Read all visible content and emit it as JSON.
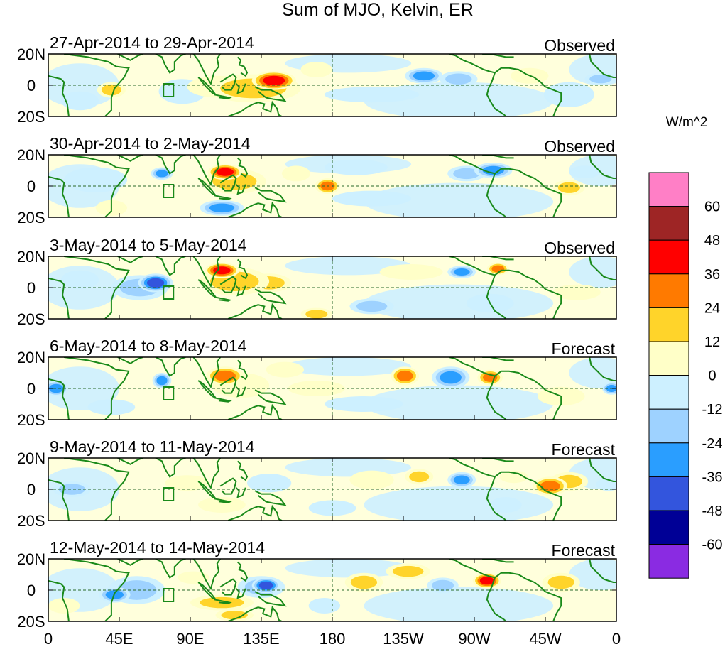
{
  "chart_data": {
    "type": "heatmap",
    "title": "Sum of MJO, Kelvin, ER",
    "units_label": "W/m^2",
    "x_ticks": [
      "0",
      "45E",
      "90E",
      "135E",
      "180",
      "135W",
      "90W",
      "45W",
      "0"
    ],
    "x_tick_values": [
      0,
      45,
      90,
      135,
      180,
      225,
      270,
      315,
      360
    ],
    "y_ticks": [
      "20N",
      "0",
      "20S"
    ],
    "y_tick_values": [
      20,
      0,
      -20
    ],
    "xlim": [
      0,
      360
    ],
    "ylim": [
      -20,
      20
    ],
    "colorbar": {
      "labels": [
        "60",
        "48",
        "36",
        "24",
        "12",
        "0",
        "-12",
        "-24",
        "-36",
        "-48",
        "-60"
      ],
      "levels": [
        60,
        48,
        36,
        24,
        12,
        0,
        -12,
        -24,
        -36,
        -48,
        -60
      ],
      "colors": [
        "#ff7fc6",
        "#9e2525",
        "#ff0000",
        "#ff7a00",
        "#ffd42a",
        "#ffffc8",
        "#cdf0ff",
        "#9ed2ff",
        "#2a9eff",
        "#3355dd",
        "#000096",
        "#8a2be2"
      ]
    },
    "panels": [
      {
        "period": "27-Apr-2014 to 29-Apr-2014",
        "status": "Observed",
        "anomalies": [
          {
            "lon": 143,
            "lat": 3,
            "rx": 14,
            "ry": 6,
            "value": 50
          },
          {
            "lon": 130,
            "lat": -2,
            "rx": 30,
            "ry": 9,
            "value": 18
          },
          {
            "lon": 108,
            "lat": -1,
            "rx": 20,
            "ry": 7,
            "value": 15
          },
          {
            "lon": 170,
            "lat": 10,
            "rx": 10,
            "ry": 5,
            "value": 14
          },
          {
            "lon": 40,
            "lat": -3,
            "rx": 9,
            "ry": 5,
            "value": 25
          },
          {
            "lon": 238,
            "lat": 6,
            "rx": 12,
            "ry": 5,
            "value": -30
          },
          {
            "lon": 260,
            "lat": 4,
            "rx": 12,
            "ry": 5,
            "value": -25
          },
          {
            "lon": 350,
            "lat": 4,
            "rx": 10,
            "ry": 4,
            "value": -28
          },
          {
            "lon": 205,
            "lat": -6,
            "rx": 30,
            "ry": 5,
            "value": -10
          },
          {
            "lon": 85,
            "lat": -4,
            "rx": 15,
            "ry": 8,
            "value": -8
          },
          {
            "lon": 305,
            "lat": 6,
            "rx": 12,
            "ry": 5,
            "value": 14
          },
          {
            "lon": 330,
            "lat": -6,
            "rx": 16,
            "ry": 8,
            "value": -8
          },
          {
            "lon": 20,
            "lat": -10,
            "rx": 12,
            "ry": 6,
            "value": -10
          }
        ]
      },
      {
        "period": "30-Apr-2014 to 2-May-2014",
        "status": "Observed",
        "anomalies": [
          {
            "lon": 112,
            "lat": 9,
            "rx": 11,
            "ry": 5,
            "value": 42
          },
          {
            "lon": 118,
            "lat": 3,
            "rx": 20,
            "ry": 8,
            "value": 18
          },
          {
            "lon": 177,
            "lat": 0,
            "rx": 8,
            "ry": 5,
            "value": 30
          },
          {
            "lon": 157,
            "lat": 8,
            "rx": 9,
            "ry": 5,
            "value": 15
          },
          {
            "lon": 330,
            "lat": -1,
            "rx": 10,
            "ry": 5,
            "value": 28
          },
          {
            "lon": 282,
            "lat": 10,
            "rx": 12,
            "ry": 5,
            "value": -35
          },
          {
            "lon": 265,
            "lat": 8,
            "rx": 12,
            "ry": 5,
            "value": -20
          },
          {
            "lon": 110,
            "lat": -14,
            "rx": 14,
            "ry": 5,
            "value": -30
          },
          {
            "lon": 72,
            "lat": 8,
            "rx": 7,
            "ry": 4,
            "value": -30
          },
          {
            "lon": 30,
            "lat": 4,
            "rx": 20,
            "ry": 8,
            "value": -8
          },
          {
            "lon": 205,
            "lat": -8,
            "rx": 25,
            "ry": 5,
            "value": -12
          },
          {
            "lon": 195,
            "lat": 12,
            "rx": 20,
            "ry": 5,
            "value": -10
          },
          {
            "lon": 340,
            "lat": 9,
            "rx": 10,
            "ry": 4,
            "value": -14
          },
          {
            "lon": 40,
            "lat": -14,
            "rx": 10,
            "ry": 5,
            "value": 12
          }
        ]
      },
      {
        "period": "3-May-2014 to 5-May-2014",
        "status": "Observed",
        "anomalies": [
          {
            "lon": 68,
            "lat": 3,
            "rx": 11,
            "ry": 6,
            "value": -52
          },
          {
            "lon": 58,
            "lat": 0,
            "rx": 18,
            "ry": 8,
            "value": -22
          },
          {
            "lon": 110,
            "lat": 11,
            "rx": 11,
            "ry": 5,
            "value": 42
          },
          {
            "lon": 118,
            "lat": 4,
            "rx": 22,
            "ry": 9,
            "value": 26
          },
          {
            "lon": 140,
            "lat": 3,
            "rx": 14,
            "ry": 6,
            "value": 22
          },
          {
            "lon": 170,
            "lat": -17,
            "rx": 10,
            "ry": 4,
            "value": 28
          },
          {
            "lon": 205,
            "lat": -12,
            "rx": 14,
            "ry": 5,
            "value": -28
          },
          {
            "lon": 262,
            "lat": 10,
            "rx": 9,
            "ry": 4,
            "value": -38
          },
          {
            "lon": 285,
            "lat": 12,
            "rx": 7,
            "ry": 4,
            "value": 30
          },
          {
            "lon": 230,
            "lat": 10,
            "rx": 20,
            "ry": 5,
            "value": 15
          },
          {
            "lon": 280,
            "lat": -10,
            "rx": 15,
            "ry": 6,
            "value": -10
          },
          {
            "lon": 20,
            "lat": 5,
            "rx": 12,
            "ry": 6,
            "value": -12
          },
          {
            "lon": 335,
            "lat": -3,
            "rx": 15,
            "ry": 5,
            "value": 10
          }
        ]
      },
      {
        "period": "6-May-2014 to 8-May-2014",
        "status": "Forecast",
        "anomalies": [
          {
            "lon": 112,
            "lat": 8,
            "rx": 12,
            "ry": 6,
            "value": 30
          },
          {
            "lon": 122,
            "lat": 2,
            "rx": 18,
            "ry": 8,
            "value": 16
          },
          {
            "lon": 226,
            "lat": 8,
            "rx": 9,
            "ry": 6,
            "value": 30
          },
          {
            "lon": 255,
            "lat": 7,
            "rx": 12,
            "ry": 7,
            "value": -32
          },
          {
            "lon": 280,
            "lat": 7,
            "rx": 8,
            "ry": 5,
            "value": 38
          },
          {
            "lon": 5,
            "lat": 0,
            "rx": 8,
            "ry": 5,
            "value": -30
          },
          {
            "lon": 357,
            "lat": 0,
            "rx": 6,
            "ry": 4,
            "value": -30
          },
          {
            "lon": 72,
            "lat": 5,
            "rx": 6,
            "ry": 5,
            "value": -30
          },
          {
            "lon": 170,
            "lat": 0,
            "rx": 18,
            "ry": 5,
            "value": 15
          },
          {
            "lon": 150,
            "lat": 12,
            "rx": 12,
            "ry": 5,
            "value": 14
          },
          {
            "lon": 200,
            "lat": -10,
            "rx": 25,
            "ry": 5,
            "value": -12
          },
          {
            "lon": 325,
            "lat": -5,
            "rx": 15,
            "ry": 6,
            "value": 14
          },
          {
            "lon": 40,
            "lat": -12,
            "rx": 15,
            "ry": 5,
            "value": -10
          }
        ]
      },
      {
        "period": "9-May-2014 to 11-May-2014",
        "status": "Forecast",
        "anomalies": [
          {
            "lon": 318,
            "lat": 2,
            "rx": 11,
            "ry": 6,
            "value": 34
          },
          {
            "lon": 330,
            "lat": 5,
            "rx": 12,
            "ry": 6,
            "value": 20
          },
          {
            "lon": 235,
            "lat": 8,
            "rx": 9,
            "ry": 5,
            "value": 26
          },
          {
            "lon": 205,
            "lat": 6,
            "rx": 14,
            "ry": 6,
            "value": 15
          },
          {
            "lon": 140,
            "lat": 4,
            "rx": 14,
            "ry": 6,
            "value": -14
          },
          {
            "lon": 262,
            "lat": 6,
            "rx": 9,
            "ry": 5,
            "value": -30
          },
          {
            "lon": 15,
            "lat": 0,
            "rx": 12,
            "ry": 5,
            "value": -25
          },
          {
            "lon": 290,
            "lat": -10,
            "rx": 10,
            "ry": 5,
            "value": -14
          },
          {
            "lon": 295,
            "lat": 8,
            "rx": 9,
            "ry": 4,
            "value": 14
          },
          {
            "lon": 88,
            "lat": 4,
            "rx": 14,
            "ry": 5,
            "value": 10
          },
          {
            "lon": 110,
            "lat": -10,
            "rx": 15,
            "ry": 5,
            "value": 12
          },
          {
            "lon": 180,
            "lat": -12,
            "rx": 15,
            "ry": 5,
            "value": -12
          },
          {
            "lon": 355,
            "lat": 3,
            "rx": 8,
            "ry": 4,
            "value": -14
          }
        ]
      },
      {
        "period": "12-May-2014 to 14-May-2014",
        "status": "Forecast",
        "anomalies": [
          {
            "lon": 56,
            "lat": 0,
            "rx": 18,
            "ry": 9,
            "value": -28
          },
          {
            "lon": 42,
            "lat": -3,
            "rx": 10,
            "ry": 5,
            "value": -40
          },
          {
            "lon": 138,
            "lat": 3,
            "rx": 9,
            "ry": 5,
            "value": -48
          },
          {
            "lon": 135,
            "lat": 2,
            "rx": 15,
            "ry": 7,
            "value": -24
          },
          {
            "lon": 278,
            "lat": 6,
            "rx": 9,
            "ry": 5,
            "value": 42
          },
          {
            "lon": 200,
            "lat": 5,
            "rx": 12,
            "ry": 6,
            "value": 26
          },
          {
            "lon": 228,
            "lat": 12,
            "rx": 14,
            "ry": 5,
            "value": 20
          },
          {
            "lon": 325,
            "lat": 5,
            "rx": 12,
            "ry": 6,
            "value": 24
          },
          {
            "lon": 110,
            "lat": -8,
            "rx": 20,
            "ry": 5,
            "value": 20
          },
          {
            "lon": 118,
            "lat": -16,
            "rx": 12,
            "ry": 4,
            "value": 28
          },
          {
            "lon": 250,
            "lat": 3,
            "rx": 10,
            "ry": 5,
            "value": -24
          },
          {
            "lon": 175,
            "lat": -10,
            "rx": 10,
            "ry": 5,
            "value": -14
          },
          {
            "lon": 92,
            "lat": 8,
            "rx": 10,
            "ry": 4,
            "value": 12
          },
          {
            "lon": 10,
            "lat": -10,
            "rx": 10,
            "ry": 5,
            "value": 10
          }
        ]
      }
    ]
  }
}
